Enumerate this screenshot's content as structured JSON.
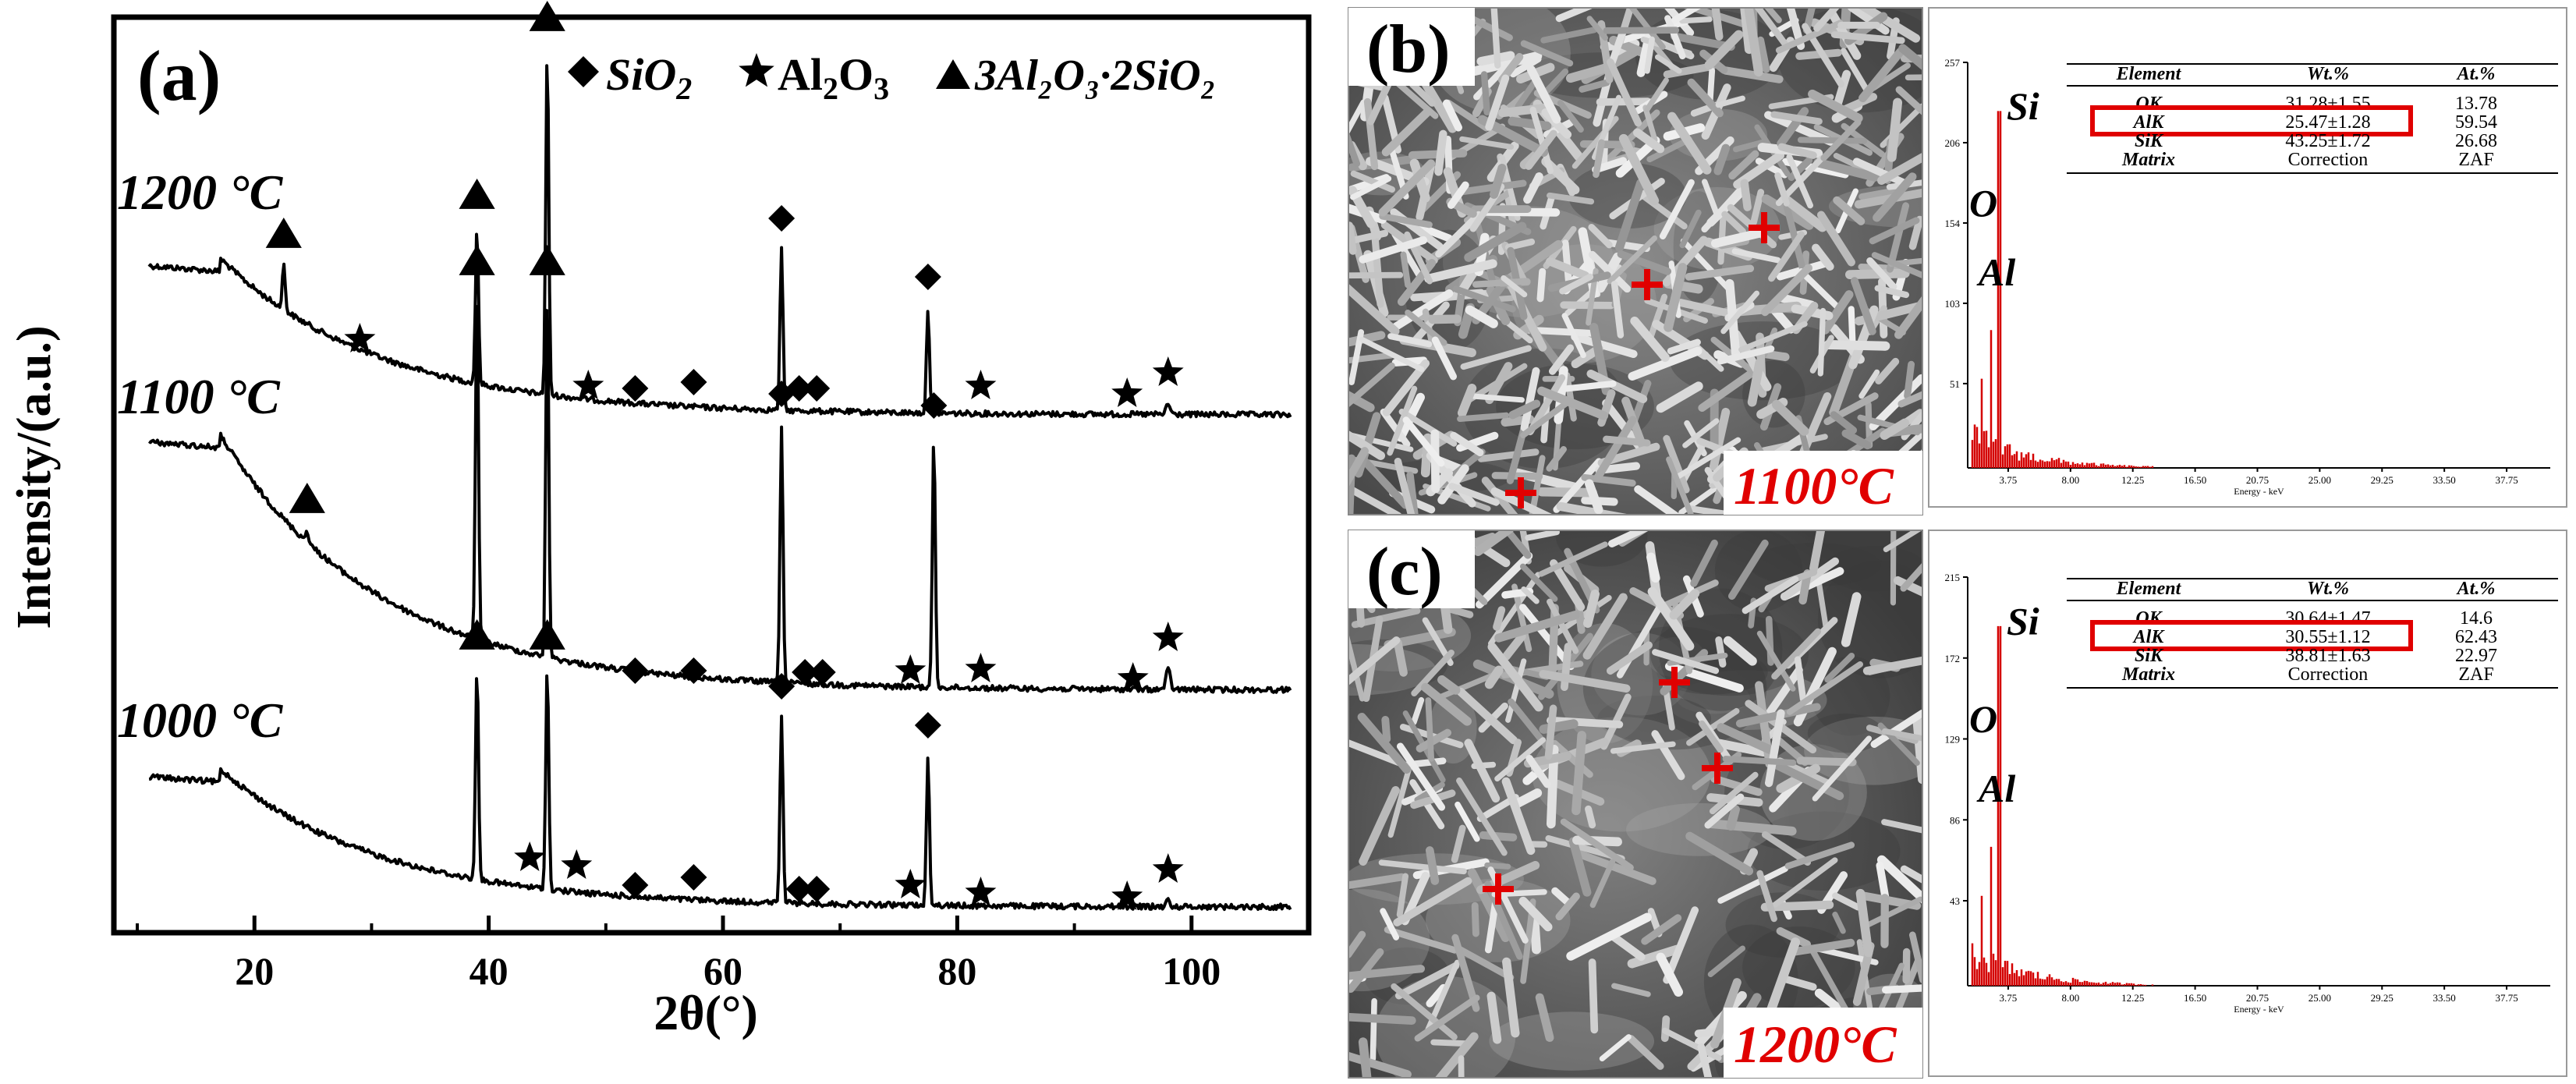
{
  "figure": {
    "panel_a": {
      "label": "(a)",
      "legend": {
        "sio2": "SiO",
        "sio2_sub": "2",
        "al2o3_a": "Al",
        "al2o3_sub1": "2",
        "al2o3_b": "O",
        "al2o3_sub2": "3",
        "mullite": "3Al₂O₃·2SiO₂"
      },
      "temps": [
        "1200 °C",
        "1100 °C",
        "1000 °C"
      ]
    },
    "panel_b": {
      "label": "(b)",
      "temp_label": "1100°C",
      "eds": {
        "yticks": [
          "257",
          "206",
          "154",
          "103",
          "51"
        ],
        "xticks": [
          "3.75",
          "8.00",
          "12.25",
          "16.50",
          "20.75",
          "25.00",
          "29.25",
          "33.50",
          "37.75"
        ],
        "xlabel": "Energy - keV",
        "peaks": [
          "Si",
          "O",
          "Al"
        ],
        "table": {
          "headers": [
            "Element",
            "Wt.%",
            "At.%"
          ],
          "rows": [
            [
              "OK",
              "31.28±1.55",
              "13.78"
            ],
            [
              "AlK",
              "25.47±1.28",
              "59.54"
            ],
            [
              "SiK",
              "43.25±1.72",
              "26.68"
            ],
            [
              "Matrix",
              "Correction",
              "ZAF"
            ]
          ]
        }
      }
    },
    "panel_c": {
      "label": "(c)",
      "temp_label": "1200°C",
      "eds": {
        "yticks": [
          "215",
          "172",
          "129",
          "86",
          "43"
        ],
        "xticks": [
          "3.75",
          "8.00",
          "12.25",
          "16.50",
          "20.75",
          "25.00",
          "29.25",
          "33.50",
          "37.75"
        ],
        "xlabel": "Energy - keV",
        "peaks": [
          "Si",
          "O",
          "Al"
        ],
        "table": {
          "headers": [
            "Element",
            "Wt.%",
            "At.%"
          ],
          "rows": [
            [
              "OK",
              "30.64±1.47",
              "14.6"
            ],
            [
              "AlK",
              "30.55±1.12",
              "62.43"
            ],
            [
              "SiK",
              "38.81±1.63",
              "22.97"
            ],
            [
              "Matrix",
              "Correction",
              "ZAF"
            ]
          ]
        }
      }
    },
    "colors": {
      "marker": "#e00000",
      "highlight": "#e00000",
      "eds_bar": "#d40000"
    }
  },
  "chart_data": {
    "type": "line",
    "xlabel": "2θ(°)",
    "ylabel": "Intensity/(a.u.)",
    "xlim": [
      8,
      110
    ],
    "xticks": [
      20,
      40,
      60,
      80,
      100
    ],
    "series": [
      {
        "name": "1200 °C",
        "peaks": [
          {
            "x": 22.5,
            "phase": "mullite"
          },
          {
            "x": 29.0,
            "phase": "Al2O3"
          },
          {
            "x": 39.0,
            "phase": "mullite"
          },
          {
            "x": 45.0,
            "phase": "mullite"
          },
          {
            "x": 48.5,
            "phase": "Al2O3"
          },
          {
            "x": 52.5,
            "phase": "SiO2"
          },
          {
            "x": 57.5,
            "phase": "SiO2"
          },
          {
            "x": 65.0,
            "phase": "SiO2"
          },
          {
            "x": 66.5,
            "phase": "SiO2"
          },
          {
            "x": 68.0,
            "phase": "SiO2"
          },
          {
            "x": 77.5,
            "phase": "SiO2"
          },
          {
            "x": 82.0,
            "phase": "Al2O3"
          },
          {
            "x": 94.5,
            "phase": "Al2O3"
          },
          {
            "x": 98.0,
            "phase": "Al2O3"
          }
        ]
      },
      {
        "name": "1100 °C",
        "peaks": [
          {
            "x": 24.5,
            "phase": "mullite"
          },
          {
            "x": 39.0,
            "phase": "mullite"
          },
          {
            "x": 45.0,
            "phase": "mullite"
          },
          {
            "x": 52.5,
            "phase": "SiO2"
          },
          {
            "x": 57.5,
            "phase": "SiO2"
          },
          {
            "x": 65.0,
            "phase": "SiO2"
          },
          {
            "x": 67.0,
            "phase": "SiO2"
          },
          {
            "x": 68.5,
            "phase": "SiO2"
          },
          {
            "x": 76.0,
            "phase": "Al2O3"
          },
          {
            "x": 78.0,
            "phase": "SiO2"
          },
          {
            "x": 82.0,
            "phase": "Al2O3"
          },
          {
            "x": 95.0,
            "phase": "Al2O3"
          },
          {
            "x": 98.0,
            "phase": "Al2O3"
          }
        ]
      },
      {
        "name": "1000 °C",
        "peaks": [
          {
            "x": 39.0,
            "phase": "mullite"
          },
          {
            "x": 43.5,
            "phase": "Al2O3"
          },
          {
            "x": 45.0,
            "phase": "mullite"
          },
          {
            "x": 47.5,
            "phase": "Al2O3"
          },
          {
            "x": 52.5,
            "phase": "SiO2"
          },
          {
            "x": 57.5,
            "phase": "SiO2"
          },
          {
            "x": 65.0,
            "phase": "SiO2"
          },
          {
            "x": 66.5,
            "phase": "SiO2"
          },
          {
            "x": 68.0,
            "phase": "SiO2"
          },
          {
            "x": 76.0,
            "phase": "Al2O3"
          },
          {
            "x": 77.5,
            "phase": "SiO2"
          },
          {
            "x": 82.0,
            "phase": "Al2O3"
          },
          {
            "x": 94.5,
            "phase": "Al2O3"
          },
          {
            "x": 98.0,
            "phase": "Al2O3"
          }
        ]
      }
    ]
  }
}
